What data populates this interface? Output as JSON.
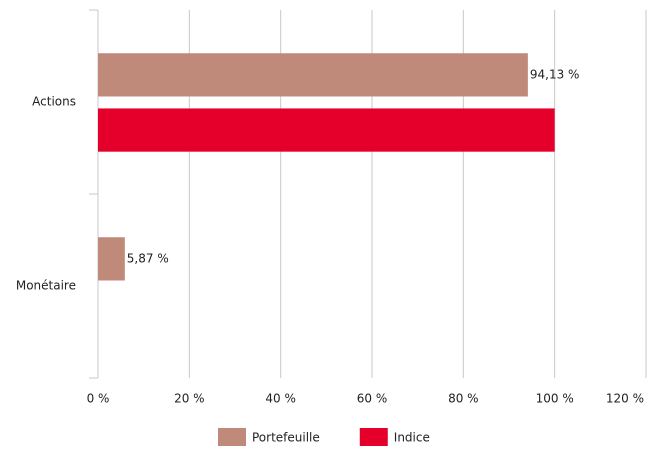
{
  "chart_data": {
    "type": "barh",
    "categories": [
      "Actions",
      "Monétaire"
    ],
    "series": [
      {
        "name": "Portefeuille",
        "color": "#c08a7a",
        "values": [
          94.13,
          5.87
        ],
        "value_labels": [
          "94,13 %",
          "5,87 %"
        ]
      },
      {
        "name": "Indice",
        "color": "#e4002b",
        "values": [
          100,
          null
        ]
      }
    ],
    "xlim": [
      0,
      120
    ],
    "xticks": [
      {
        "value": 0,
        "label": "0 %"
      },
      {
        "value": 20,
        "label": "20 %"
      },
      {
        "value": 40,
        "label": "40 %"
      },
      {
        "value": 60,
        "label": "60 %"
      },
      {
        "value": 80,
        "label": "80 %"
      },
      {
        "value": 100,
        "label": "100 %"
      },
      {
        "value": 120,
        "label": "120 %"
      }
    ],
    "grid": true,
    "legend": "bottom"
  }
}
